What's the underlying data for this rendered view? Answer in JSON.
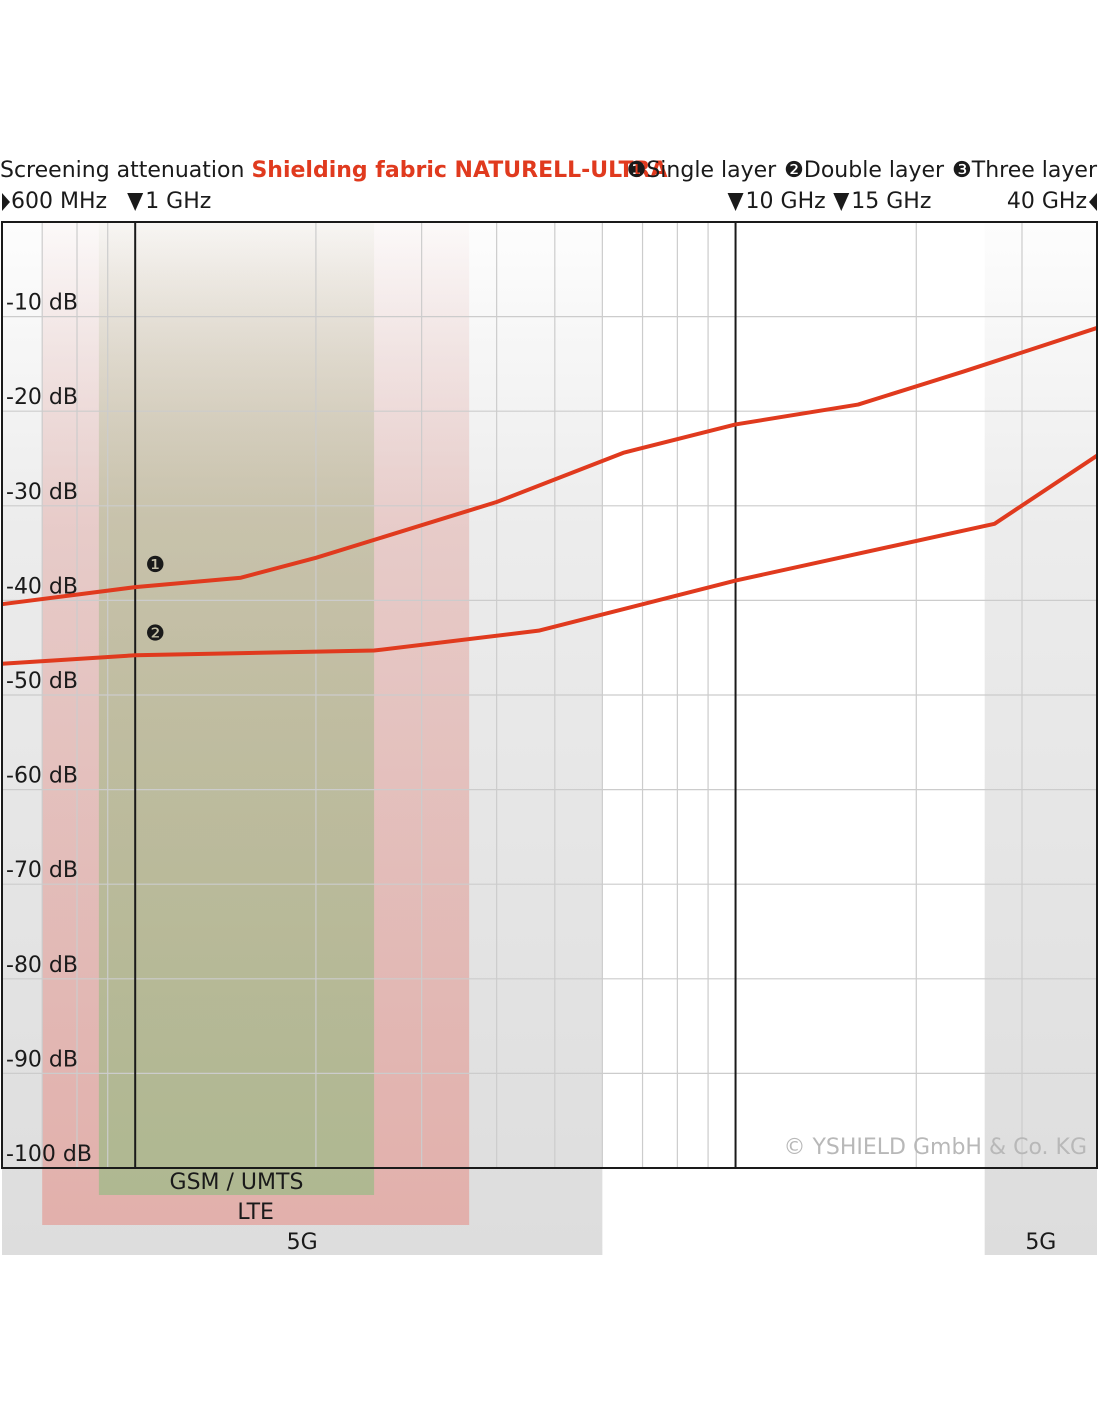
{
  "chart_data": {
    "type": "line",
    "title": "Screening attenuation",
    "subtitle": "Shielding fabric NATURELL-ULTRA",
    "subtitle_color": "#e03a1e",
    "log_x": true,
    "grid": true,
    "xlim": [
      600,
      40000
    ],
    "xticks": [
      {
        "value": 600,
        "label": "600 MHz"
      },
      {
        "value": 1000,
        "label": "1 GHz"
      },
      {
        "value": 10000,
        "label": "10 GHz"
      },
      {
        "value": 15000,
        "label": "15 GHz"
      },
      {
        "value": 40000,
        "label": "40 GHz"
      }
    ],
    "x_gridlines": [
      700,
      800,
      900,
      2000,
      3000,
      4000,
      5000,
      6000,
      7000,
      8000,
      9000,
      20000,
      30000
    ],
    "emphasized_x": [
      1000,
      10000
    ],
    "ylim": [
      -100,
      0
    ],
    "yticks": [
      {
        "value": -10,
        "label": "-10 dB"
      },
      {
        "value": -20,
        "label": "-20 dB"
      },
      {
        "value": -30,
        "label": "-30 dB"
      },
      {
        "value": -40,
        "label": "-40 dB"
      },
      {
        "value": -50,
        "label": "-50 dB"
      },
      {
        "value": -60,
        "label": "-60 dB"
      },
      {
        "value": -70,
        "label": "-70 dB"
      },
      {
        "value": -80,
        "label": "-80 dB"
      },
      {
        "value": -90,
        "label": "-90 dB"
      },
      {
        "value": -100,
        "label": "-100 dB"
      }
    ],
    "bands": [
      {
        "label": "5G",
        "range": [
          600,
          6000
        ],
        "color": "#d9d9d9"
      },
      {
        "label": "5G",
        "range": [
          26000,
          40000
        ],
        "color": "#d9d9d9"
      },
      {
        "label": "LTE",
        "range": [
          700,
          3600
        ],
        "color": "#e2aba6"
      },
      {
        "label": "GSM / UMTS",
        "range": [
          870,
          2500
        ],
        "color": "#a9b98e"
      }
    ],
    "series": [
      {
        "marker": "❶",
        "name": "Single layer",
        "color": "#e03a1e",
        "x": [
          600,
          1000,
          1500,
          2000,
          4000,
          6500,
          10000,
          16000,
          24000,
          40000
        ],
        "values": [
          -40.4,
          -38.6,
          -37.6,
          -35.5,
          -29.6,
          -24.4,
          -21.4,
          -19.3,
          -15.8,
          -11.2
        ]
      },
      {
        "marker": "❷",
        "name": "Double layer",
        "color": "#e03a1e",
        "x": [
          600,
          1000,
          2500,
          4700,
          10000,
          27000,
          40000
        ],
        "values": [
          -46.7,
          -45.8,
          -45.3,
          -43.2,
          -37.9,
          -31.9,
          -24.7
        ]
      }
    ],
    "legend_extra": {
      "marker": "❸",
      "name": "Three layer"
    },
    "annotation": "© YSHIELD GmbH & Co. KG"
  }
}
